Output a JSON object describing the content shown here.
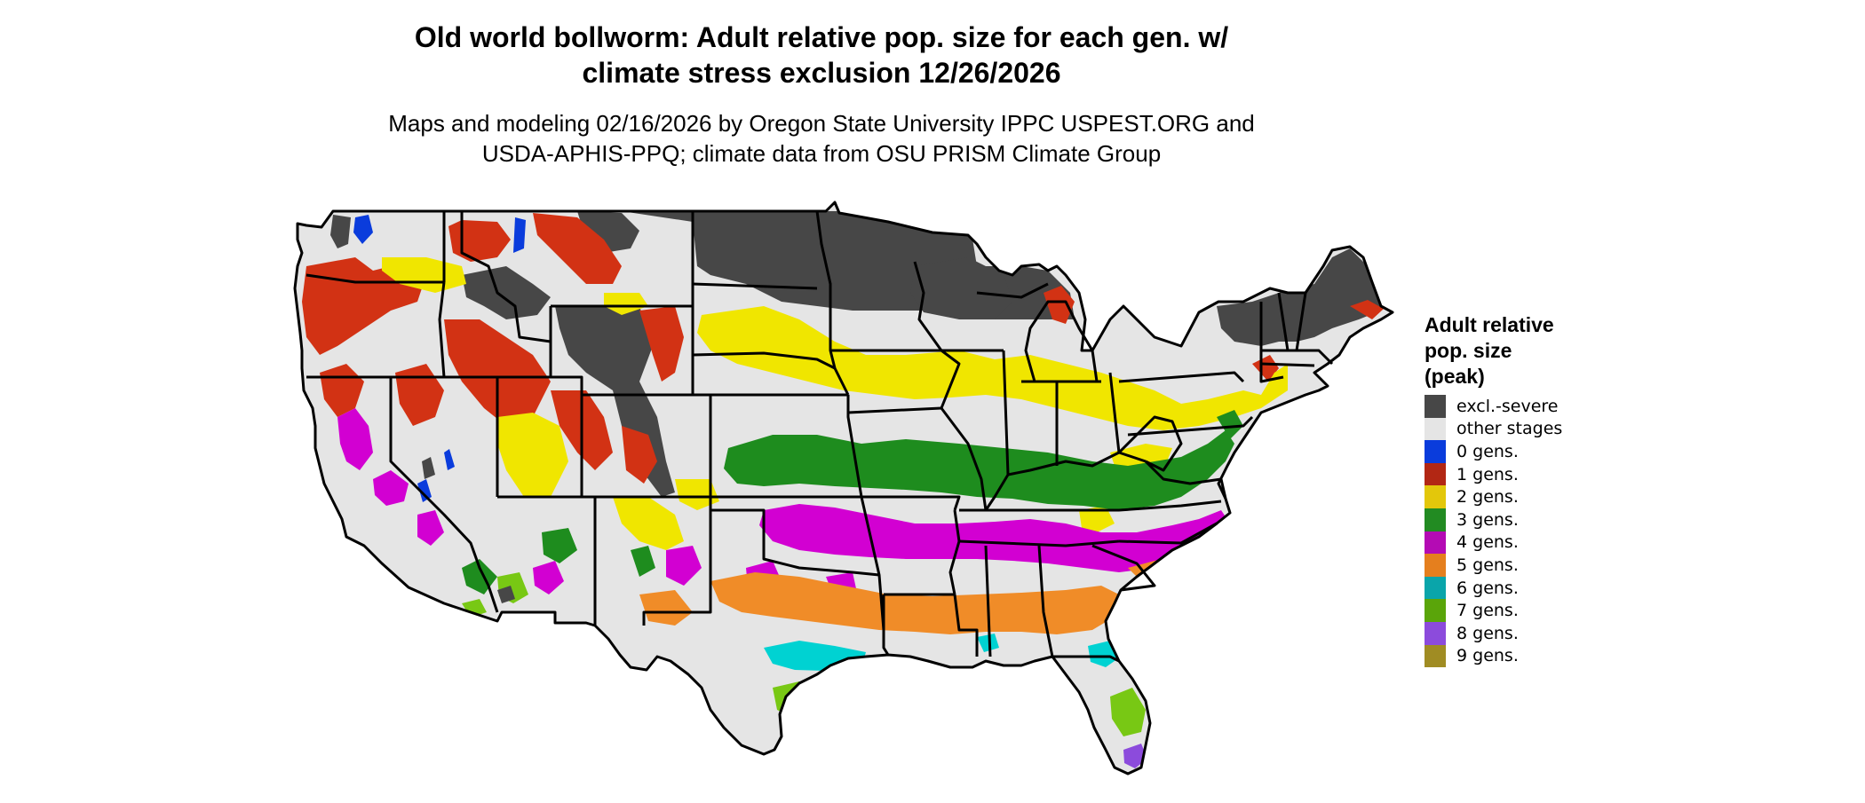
{
  "title": {
    "line1": "Old world bollworm: Adult relative pop. size for each gen. w/",
    "line2": "climate stress exclusion 12/26/2026"
  },
  "subtitle": {
    "line1": "Maps and modeling 02/16/2026 by Oregon State University IPPC USPEST.ORG and",
    "line2": "USDA-APHIS-PPQ; climate data from OSU PRISM Climate Group"
  },
  "legend": {
    "title_lines": [
      "Adult relative",
      "pop. size",
      "(peak)"
    ],
    "items": [
      {
        "label": "excl.-severe",
        "color": "#474747"
      },
      {
        "label": "other stages",
        "color": "#e5e5e5"
      },
      {
        "label": "0 gens.",
        "color": "#0a3cdc"
      },
      {
        "label": "1 gens.",
        "color": "#b22714"
      },
      {
        "label": "2 gens.",
        "color": "#e3c70b"
      },
      {
        "label": "3 gens.",
        "color": "#228b22"
      },
      {
        "label": "4 gens.",
        "color": "#b40bb4"
      },
      {
        "label": "5 gens.",
        "color": "#e57f1e"
      },
      {
        "label": "6 gens.",
        "color": "#0aa5aa"
      },
      {
        "label": "7 gens.",
        "color": "#5aa50a"
      },
      {
        "label": "8 gens.",
        "color": "#8c4bdc"
      },
      {
        "label": "9 gens.",
        "color": "#a08c23"
      }
    ]
  },
  "map_colors": {
    "excluded": "#474747",
    "other": "#e5e5e5",
    "gen0": "#0a3cdc",
    "gen1": "#d23214",
    "gen2": "#f0e600",
    "gen3": "#1e8c1e",
    "gen4": "#d200d2",
    "gen5": "#f08c28",
    "gen6": "#00d2d2",
    "gen7": "#78c814",
    "gen8": "#8c4bdc",
    "border": "#000000"
  }
}
